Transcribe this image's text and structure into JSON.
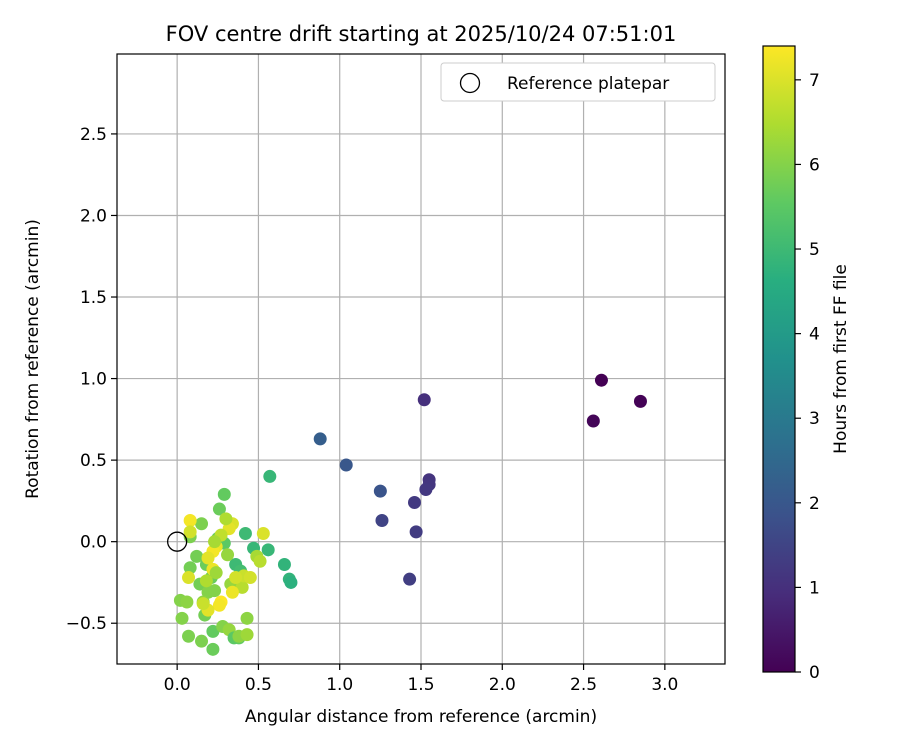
{
  "chart_data": {
    "type": "scatter",
    "title": "FOV centre drift starting at 2025/10/24 07:51:01",
    "xlabel": "Angular distance from reference (arcmin)",
    "ylabel": "Rotation from reference (arcmin)",
    "xlim": [
      -0.37,
      3.37
    ],
    "ylim": [
      -0.75,
      2.99
    ],
    "x_ticks": [
      0.0,
      0.5,
      1.0,
      1.5,
      2.0,
      2.5,
      3.0
    ],
    "x_tick_labels": [
      "0.0",
      "0.5",
      "1.0",
      "1.5",
      "2.0",
      "2.5",
      "3.0"
    ],
    "y_ticks": [
      -0.5,
      0.0,
      0.5,
      1.0,
      1.5,
      2.0,
      2.5
    ],
    "y_tick_labels": [
      "−0.5",
      "0.0",
      "0.5",
      "1.0",
      "1.5",
      "2.0",
      "2.5"
    ],
    "grid": true,
    "legend": {
      "position": "upper-right",
      "label": "Reference platepar"
    },
    "reference_point": {
      "x": 0.0,
      "y": 0.0
    },
    "colorbar": {
      "label": "Hours from first FF file",
      "min": 0,
      "max": 7.4,
      "ticks": [
        0,
        1,
        2,
        3,
        4,
        5,
        6,
        7
      ],
      "tick_labels": [
        "0",
        "1",
        "2",
        "3",
        "4",
        "5",
        "6",
        "7"
      ],
      "colormap": "viridis"
    },
    "points": [
      {
        "x": 2.61,
        "y": 0.99,
        "hours": 0.0
      },
      {
        "x": 2.85,
        "y": 0.86,
        "hours": 0.05
      },
      {
        "x": 2.56,
        "y": 0.74,
        "hours": 0.1
      },
      {
        "x": 1.52,
        "y": 0.87,
        "hours": 1.0
      },
      {
        "x": 1.55,
        "y": 0.38,
        "hours": 1.1
      },
      {
        "x": 1.55,
        "y": 0.35,
        "hours": 1.15
      },
      {
        "x": 1.53,
        "y": 0.32,
        "hours": 1.2
      },
      {
        "x": 1.46,
        "y": 0.24,
        "hours": 1.25
      },
      {
        "x": 1.47,
        "y": 0.06,
        "hours": 1.3
      },
      {
        "x": 1.43,
        "y": -0.23,
        "hours": 1.35
      },
      {
        "x": 1.26,
        "y": 0.13,
        "hours": 1.5
      },
      {
        "x": 1.25,
        "y": 0.31,
        "hours": 1.9
      },
      {
        "x": 1.04,
        "y": 0.47,
        "hours": 2.0
      },
      {
        "x": 0.88,
        "y": 0.63,
        "hours": 2.2
      },
      {
        "x": 0.57,
        "y": 0.4,
        "hours": 4.9
      },
      {
        "x": 0.66,
        "y": -0.14,
        "hours": 4.8
      },
      {
        "x": 0.69,
        "y": -0.23,
        "hours": 4.8
      },
      {
        "x": 0.7,
        "y": -0.25,
        "hours": 4.7
      },
      {
        "x": 0.56,
        "y": -0.05,
        "hours": 4.9
      },
      {
        "x": 0.47,
        "y": -0.04,
        "hours": 4.9
      },
      {
        "x": 0.42,
        "y": 0.05,
        "hours": 5.0
      },
      {
        "x": 0.36,
        "y": -0.14,
        "hours": 5.0
      },
      {
        "x": 0.39,
        "y": -0.18,
        "hours": 5.1
      },
      {
        "x": 0.29,
        "y": 0.29,
        "hours": 5.6
      },
      {
        "x": 0.26,
        "y": 0.2,
        "hours": 5.7
      },
      {
        "x": 0.25,
        "y": 0.02,
        "hours": 5.6
      },
      {
        "x": 0.29,
        "y": -0.01,
        "hours": 5.5
      },
      {
        "x": 0.15,
        "y": 0.11,
        "hours": 5.9
      },
      {
        "x": 0.08,
        "y": 0.03,
        "hours": 5.9
      },
      {
        "x": 0.12,
        "y": -0.09,
        "hours": 5.8
      },
      {
        "x": 0.08,
        "y": -0.16,
        "hours": 5.8
      },
      {
        "x": 0.18,
        "y": -0.14,
        "hours": 5.7
      },
      {
        "x": 0.21,
        "y": -0.22,
        "hours": 5.7
      },
      {
        "x": 0.14,
        "y": -0.26,
        "hours": 5.8
      },
      {
        "x": 0.19,
        "y": -0.31,
        "hours": 6.0
      },
      {
        "x": 0.23,
        "y": -0.3,
        "hours": 6.0
      },
      {
        "x": 0.16,
        "y": -0.37,
        "hours": 6.1
      },
      {
        "x": 0.17,
        "y": -0.45,
        "hours": 5.8
      },
      {
        "x": 0.02,
        "y": -0.36,
        "hours": 6.0
      },
      {
        "x": 0.06,
        "y": -0.37,
        "hours": 6.1
      },
      {
        "x": 0.03,
        "y": -0.47,
        "hours": 6.0
      },
      {
        "x": 0.07,
        "y": -0.58,
        "hours": 5.9
      },
      {
        "x": 0.15,
        "y": -0.61,
        "hours": 5.9
      },
      {
        "x": 0.22,
        "y": -0.55,
        "hours": 5.6
      },
      {
        "x": 0.22,
        "y": -0.66,
        "hours": 5.7
      },
      {
        "x": 0.28,
        "y": -0.52,
        "hours": 6.0
      },
      {
        "x": 0.32,
        "y": -0.54,
        "hours": 6.2
      },
      {
        "x": 0.35,
        "y": -0.59,
        "hours": 5.5
      },
      {
        "x": 0.38,
        "y": -0.59,
        "hours": 5.6
      },
      {
        "x": 0.38,
        "y": -0.58,
        "hours": 6.1
      },
      {
        "x": 0.43,
        "y": -0.57,
        "hours": 6.3
      },
      {
        "x": 0.43,
        "y": -0.47,
        "hours": 6.1
      },
      {
        "x": 0.33,
        "y": -0.26,
        "hours": 6.2
      },
      {
        "x": 0.4,
        "y": -0.28,
        "hours": 6.6
      },
      {
        "x": 0.41,
        "y": -0.21,
        "hours": 6.8
      },
      {
        "x": 0.45,
        "y": -0.22,
        "hours": 6.9
      },
      {
        "x": 0.49,
        "y": -0.09,
        "hours": 6.4
      },
      {
        "x": 0.51,
        "y": -0.12,
        "hours": 6.6
      },
      {
        "x": 0.53,
        "y": 0.05,
        "hours": 7.0
      },
      {
        "x": 0.34,
        "y": 0.11,
        "hours": 7.0
      },
      {
        "x": 0.32,
        "y": 0.08,
        "hours": 7.1
      },
      {
        "x": 0.3,
        "y": 0.14,
        "hours": 6.5
      },
      {
        "x": 0.27,
        "y": 0.04,
        "hours": 6.7
      },
      {
        "x": 0.24,
        "y": -0.03,
        "hours": 7.2
      },
      {
        "x": 0.22,
        "y": -0.06,
        "hours": 7.3
      },
      {
        "x": 0.19,
        "y": -0.1,
        "hours": 7.1
      },
      {
        "x": 0.08,
        "y": 0.13,
        "hours": 7.3
      },
      {
        "x": 0.08,
        "y": 0.06,
        "hours": 6.9
      },
      {
        "x": 0.07,
        "y": -0.22,
        "hours": 7.0
      },
      {
        "x": 0.22,
        "y": -0.17,
        "hours": 7.2
      },
      {
        "x": 0.27,
        "y": -0.37,
        "hours": 7.4
      },
      {
        "x": 0.26,
        "y": -0.39,
        "hours": 7.3
      },
      {
        "x": 0.19,
        "y": -0.42,
        "hours": 7.1
      },
      {
        "x": 0.16,
        "y": -0.38,
        "hours": 6.8
      },
      {
        "x": 0.34,
        "y": -0.31,
        "hours": 7.2
      },
      {
        "x": 0.36,
        "y": -0.22,
        "hours": 6.9
      },
      {
        "x": 0.31,
        "y": -0.08,
        "hours": 6.2
      },
      {
        "x": 0.24,
        "y": -0.19,
        "hours": 6.3
      },
      {
        "x": 0.23,
        "y": 0.0,
        "hours": 6.4
      },
      {
        "x": 0.18,
        "y": -0.24,
        "hours": 6.5
      }
    ]
  }
}
